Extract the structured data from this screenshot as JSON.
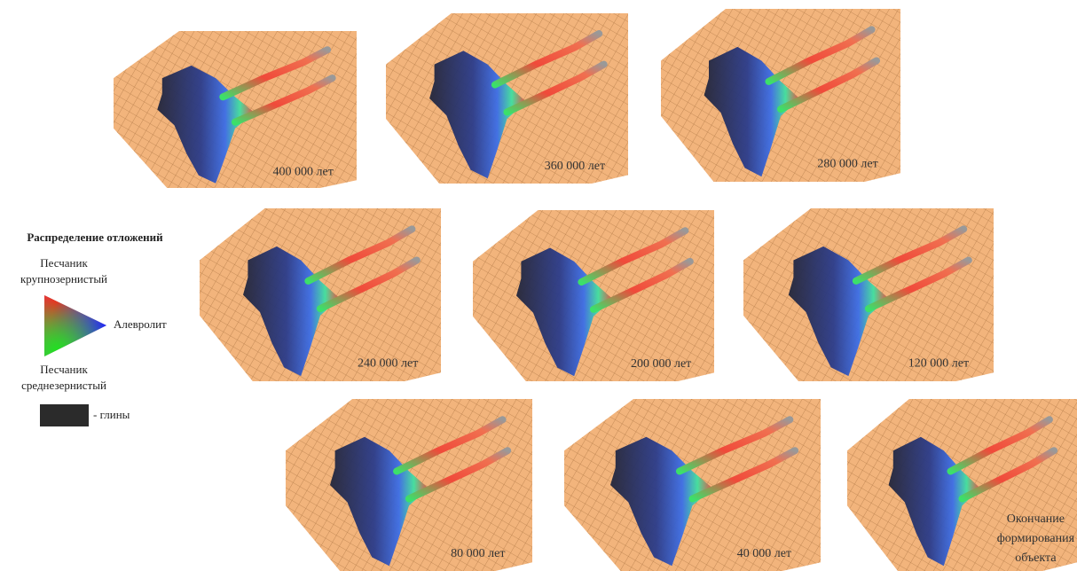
{
  "legend": {
    "title": "Распределение отложений",
    "coarse_sand": [
      "Песчаник",
      "крупнозернистый"
    ],
    "siltstone": "Алевролит",
    "medium_sand": [
      "Песчаник",
      "среднезернистый"
    ],
    "clay": "- глины"
  },
  "panels": [
    {
      "label": [
        "400 000 лет"
      ]
    },
    {
      "label": [
        "360 000 лет"
      ]
    },
    {
      "label": [
        "280 000 лет"
      ]
    },
    {
      "label": [
        "240 000 лет"
      ]
    },
    {
      "label": [
        "200 000 лет"
      ]
    },
    {
      "label": [
        "120 000 лет"
      ]
    },
    {
      "label": [
        "80 000 лет"
      ]
    },
    {
      "label": [
        "40 000 лет"
      ]
    },
    {
      "label": [
        "Окончание",
        "формирования",
        "объекта"
      ]
    }
  ]
}
